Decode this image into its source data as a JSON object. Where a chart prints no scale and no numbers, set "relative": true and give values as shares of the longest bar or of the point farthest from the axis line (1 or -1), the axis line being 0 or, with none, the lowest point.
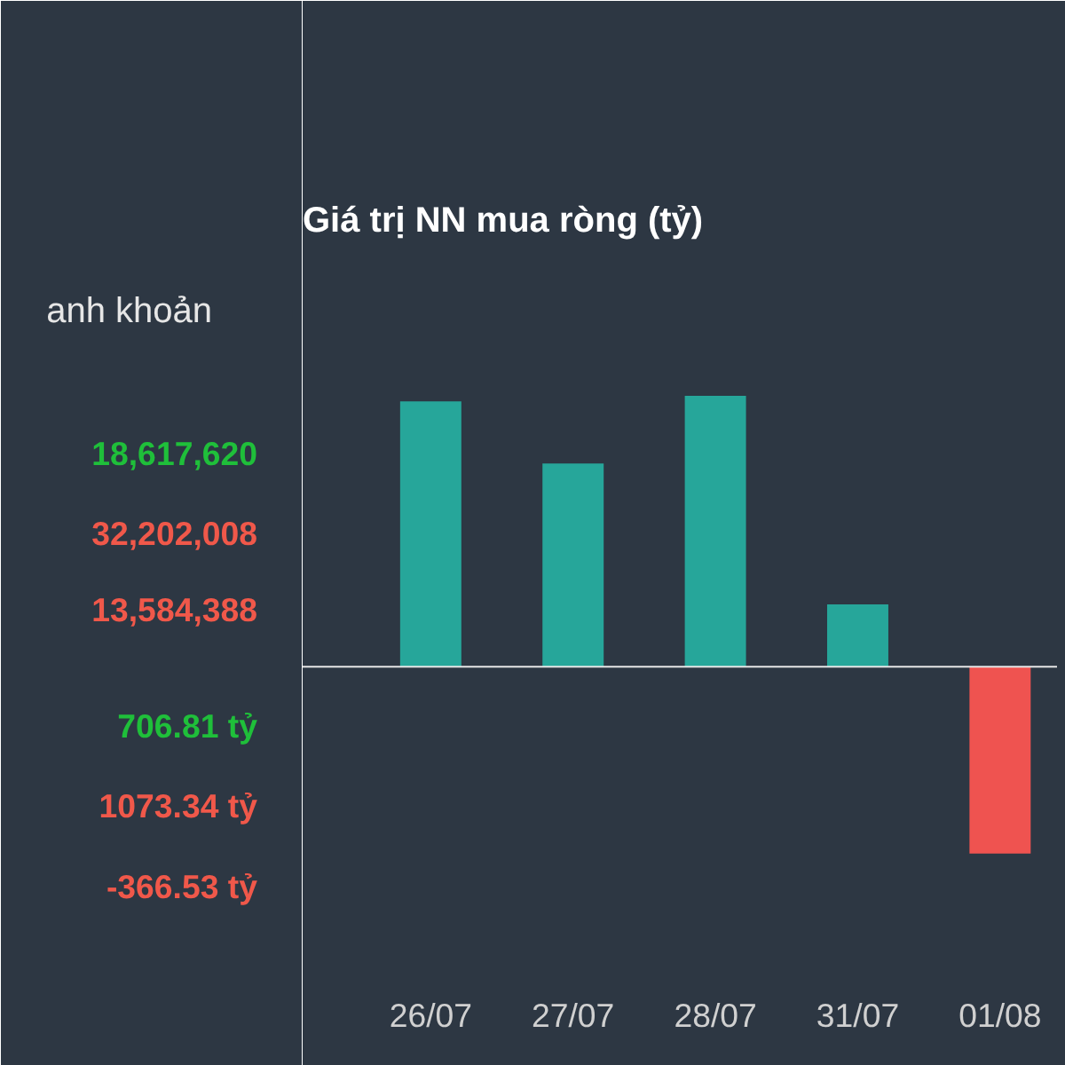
{
  "chart_data": [
    {
      "type": "other",
      "annotations": [
        "anh khoản",
        "18,617,620",
        "32,202,008",
        "13,584,388",
        "706.81 tỷ",
        "1073.34 tỷ",
        "-366.53 tỷ"
      ],
      "colors": [
        "#e6e6e6",
        "#1fbf3a",
        "#f0584a",
        "#f0584a",
        "#1fbf3a",
        "#f0584a",
        "#f0584a"
      ]
    },
    {
      "type": "bar",
      "title": "Giá trị NN mua ròng (tỷ)",
      "relative": true,
      "categories": [
        "26/07",
        "27/07",
        "28/07",
        "31/07",
        "01/08"
      ],
      "values": [
        0.98,
        0.75,
        1,
        0.23,
        -0.69
      ],
      "colors": [
        "#26a69a",
        "#26a69a",
        "#26a69a",
        "#26a69a",
        "#ef5350"
      ]
    }
  ]
}
